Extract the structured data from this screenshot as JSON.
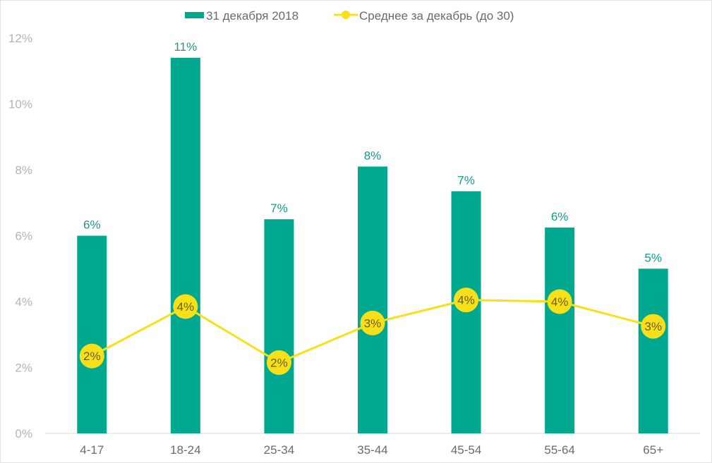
{
  "colors": {
    "bar": "#00a88f",
    "line": "#f7e01a",
    "marker": "#f7e01a",
    "axis": "#d9d9d9"
  },
  "chart_data": {
    "type": "bar",
    "title": "",
    "xlabel": "",
    "ylabel": "",
    "ylim": [
      0,
      12
    ],
    "yticks": [
      "0%",
      "2%",
      "4%",
      "6%",
      "8%",
      "10%",
      "12%"
    ],
    "ytick_values": [
      0,
      2,
      4,
      6,
      8,
      10,
      12
    ],
    "grid": false,
    "legend_position": "top",
    "categories": [
      "4-17",
      "18-24",
      "25-34",
      "35-44",
      "45-54",
      "55-64",
      "65+"
    ],
    "series": [
      {
        "name": "31 декабря 2018",
        "type": "bar",
        "values": [
          6.0,
          11.4,
          6.5,
          8.1,
          7.35,
          6.25,
          5.0
        ],
        "labels": [
          "6%",
          "11%",
          "7%",
          "8%",
          "7%",
          "6%",
          "5%"
        ]
      },
      {
        "name": "Среднее за декабрь (до 30)",
        "type": "line",
        "values": [
          2.35,
          3.85,
          2.15,
          3.35,
          4.05,
          4.0,
          3.25
        ],
        "labels": [
          "2%",
          "4%",
          "2%",
          "3%",
          "4%",
          "4%",
          "3%"
        ]
      }
    ]
  }
}
